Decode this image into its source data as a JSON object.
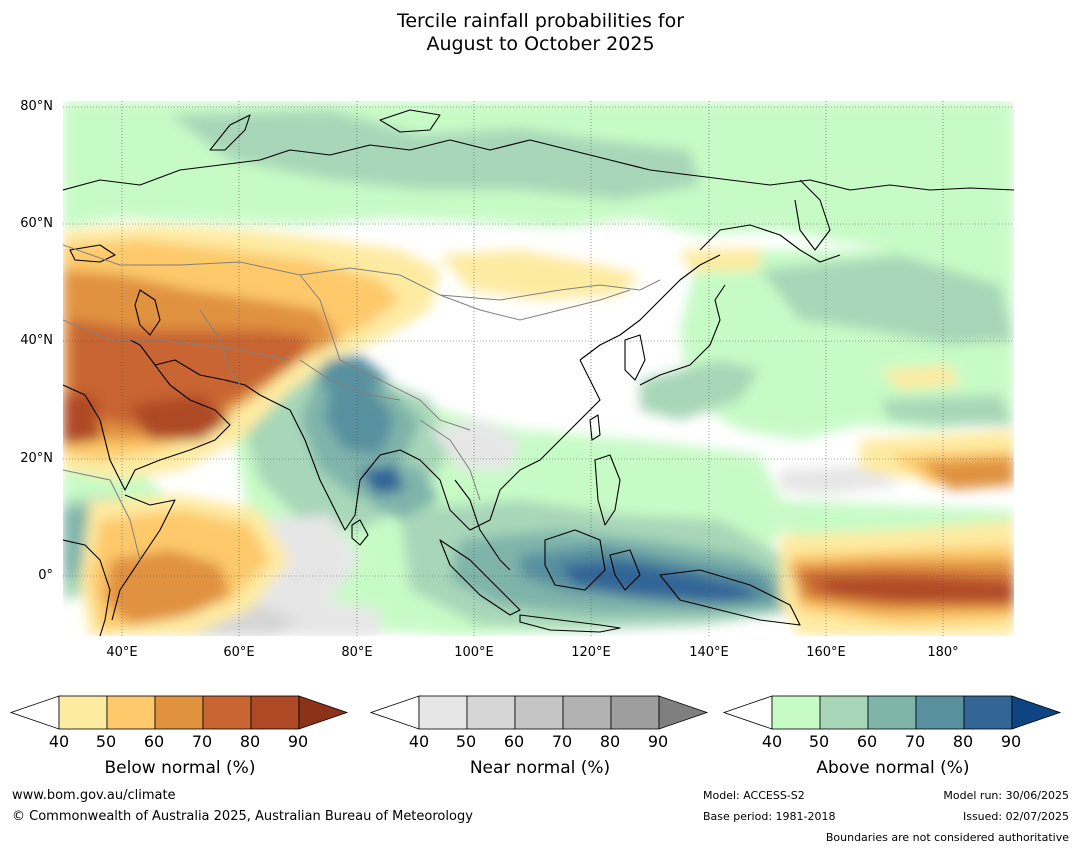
{
  "title": {
    "line1": "Tercile rainfall probabilities for",
    "line2": "August to October 2025"
  },
  "map": {
    "lat_labels": [
      "80°N",
      "60°N",
      "40°N",
      "20°N",
      "0°"
    ],
    "lon_labels": [
      "40°E",
      "60°E",
      "80°E",
      "100°E",
      "120°E",
      "140°E",
      "160°E",
      "180°"
    ],
    "extent": {
      "lon_min": 30,
      "lon_max": 192,
      "lat_min": -10,
      "lat_max": 81
    }
  },
  "legend": {
    "ticks": [
      "40",
      "50",
      "60",
      "70",
      "80",
      "90"
    ],
    "below": {
      "title": "Below normal (%)",
      "colors": [
        "#ffffff",
        "#feeba2",
        "#fdc96a",
        "#e0923f",
        "#c86533",
        "#ae4926",
        "#8c3218"
      ]
    },
    "near": {
      "title": "Near normal (%)",
      "colors": [
        "#ffffff",
        "#e6e6e6",
        "#d6d6d6",
        "#c5c5c5",
        "#b1b1b1",
        "#9e9e9e",
        "#7f7f7f"
      ]
    },
    "above": {
      "title": "Above normal (%)",
      "colors": [
        "#ffffff",
        "#c7fbc6",
        "#a7d7b8",
        "#7fb4aa",
        "#58909f",
        "#336597",
        "#0e4481"
      ]
    }
  },
  "footer": {
    "url": "www.bom.gov.au/climate",
    "copyright": "© Commonwealth of Australia 2025, Australian Bureau of Meteorology",
    "model": "Model: ACCESS-S2",
    "base_period": "Base period: 1981-2018",
    "model_run": "Model run: 30/06/2025",
    "issued": "Issued: 02/07/2025",
    "disclaimer": "Boundaries are not considered authoritative"
  }
}
